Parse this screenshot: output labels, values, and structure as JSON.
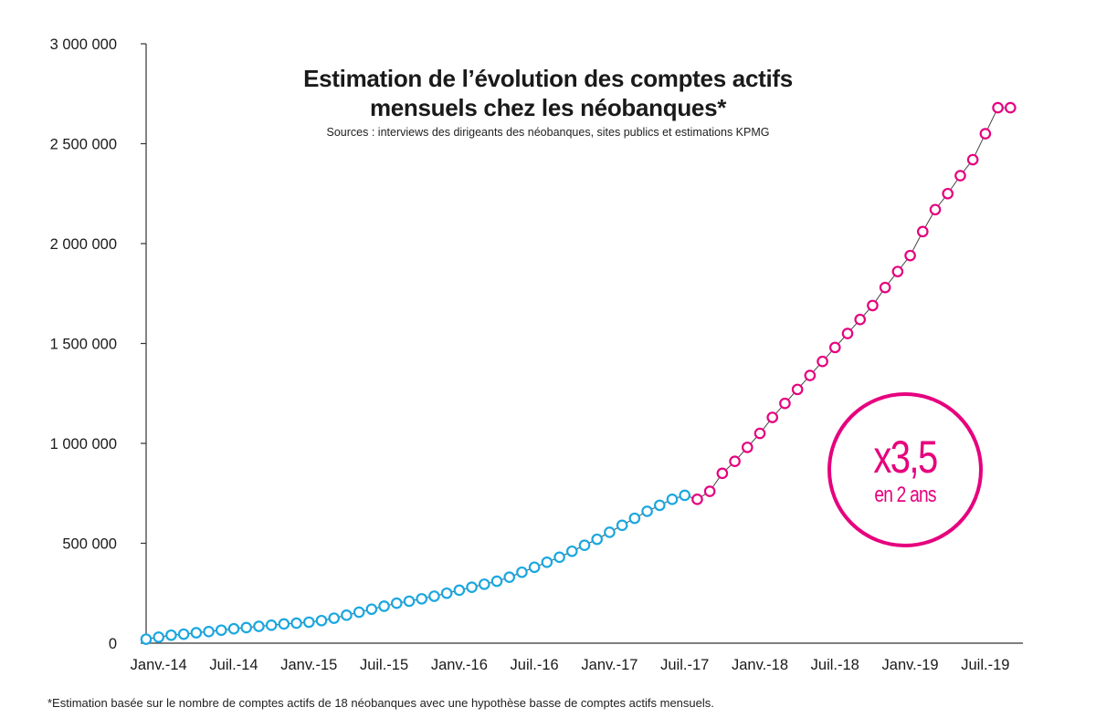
{
  "chart_data": {
    "type": "line",
    "title_line1": "Estimation de l’évolution des comptes actifs",
    "title_line2": "mensuels chez les néobanques*",
    "subtitle": "Sources : interviews des dirigeants des néobanques, sites publics et estimations KPMG",
    "footnote": "*Estimation basée sur le nombre de comptes actifs de 18 néobanques avec une hypothèse basse de comptes actifs mensuels.",
    "xlabel": "",
    "ylabel": "",
    "ylim": [
      0,
      3000000
    ],
    "yticks": [
      {
        "value": 0,
        "label": "0"
      },
      {
        "value": 500000,
        "label": "500 000"
      },
      {
        "value": 1000000,
        "label": "1 000 000"
      },
      {
        "value": 1500000,
        "label": "1 500 000"
      },
      {
        "value": 2000000,
        "label": "2 000 000"
      },
      {
        "value": 2500000,
        "label": "2 500 000"
      },
      {
        "value": 3000000,
        "label": "3 000 000"
      }
    ],
    "xlim": [
      "2013-12",
      "2019-10"
    ],
    "xticks": [
      {
        "date": "2014-01",
        "label": "Janv.-14"
      },
      {
        "date": "2014-07",
        "label": "Juil.-14"
      },
      {
        "date": "2015-01",
        "label": "Janv.-15"
      },
      {
        "date": "2015-07",
        "label": "Juil.-15"
      },
      {
        "date": "2016-01",
        "label": "Janv.-16"
      },
      {
        "date": "2016-07",
        "label": "Juil.-16"
      },
      {
        "date": "2017-01",
        "label": "Janv.-17"
      },
      {
        "date": "2017-07",
        "label": "Juil.-17"
      },
      {
        "date": "2018-01",
        "label": "Janv.-18"
      },
      {
        "date": "2018-07",
        "label": "Juil.-18"
      },
      {
        "date": "2019-01",
        "label": "Janv.-19"
      },
      {
        "date": "2019-07",
        "label": "Juil.-19"
      }
    ],
    "grid": false,
    "series": [
      {
        "color": "#1aa7e0",
        "x": [
          "2013-12",
          "2014-01",
          "2014-02",
          "2014-03",
          "2014-04",
          "2014-05",
          "2014-06",
          "2014-07",
          "2014-08",
          "2014-09",
          "2014-10",
          "2014-11",
          "2014-12",
          "2015-01",
          "2015-02",
          "2015-03",
          "2015-04",
          "2015-05",
          "2015-06",
          "2015-07",
          "2015-08",
          "2015-09",
          "2015-10",
          "2015-11",
          "2015-12",
          "2016-01",
          "2016-02",
          "2016-03",
          "2016-04",
          "2016-05",
          "2016-06",
          "2016-07",
          "2016-08",
          "2016-09",
          "2016-10",
          "2016-11",
          "2016-12",
          "2017-01",
          "2017-02",
          "2017-03",
          "2017-04",
          "2017-05",
          "2017-06",
          "2017-07"
        ],
        "values": [
          20000,
          30000,
          40000,
          45000,
          52000,
          58000,
          65000,
          72000,
          78000,
          84000,
          90000,
          96000,
          100000,
          105000,
          113000,
          125000,
          140000,
          155000,
          170000,
          185000,
          200000,
          210000,
          222000,
          235000,
          250000,
          265000,
          280000,
          295000,
          310000,
          330000,
          355000,
          380000,
          405000,
          430000,
          460000,
          490000,
          520000,
          555000,
          590000,
          625000,
          660000,
          690000,
          720000,
          740000
        ]
      },
      {
        "color": "#e6007e",
        "x": [
          "2017-08",
          "2017-09",
          "2017-10",
          "2017-11",
          "2017-12",
          "2018-01",
          "2018-02",
          "2018-03",
          "2018-04",
          "2018-05",
          "2018-06",
          "2018-07",
          "2018-08",
          "2018-09",
          "2018-10",
          "2018-11",
          "2018-12",
          "2019-01",
          "2019-02",
          "2019-03",
          "2019-04",
          "2019-05",
          "2019-06",
          "2019-07",
          "2019-08",
          "2019-09"
        ],
        "values": [
          720000,
          760000,
          850000,
          910000,
          980000,
          1050000,
          1130000,
          1200000,
          1270000,
          1340000,
          1410000,
          1480000,
          1550000,
          1620000,
          1690000,
          1780000,
          1860000,
          1940000,
          2060000,
          2170000,
          2250000,
          2340000,
          2420000,
          2550000,
          2680000,
          2680000
        ]
      }
    ],
    "annotation": {
      "big": "x3,5",
      "small": "en 2 ans",
      "color": "#e6007e"
    }
  }
}
